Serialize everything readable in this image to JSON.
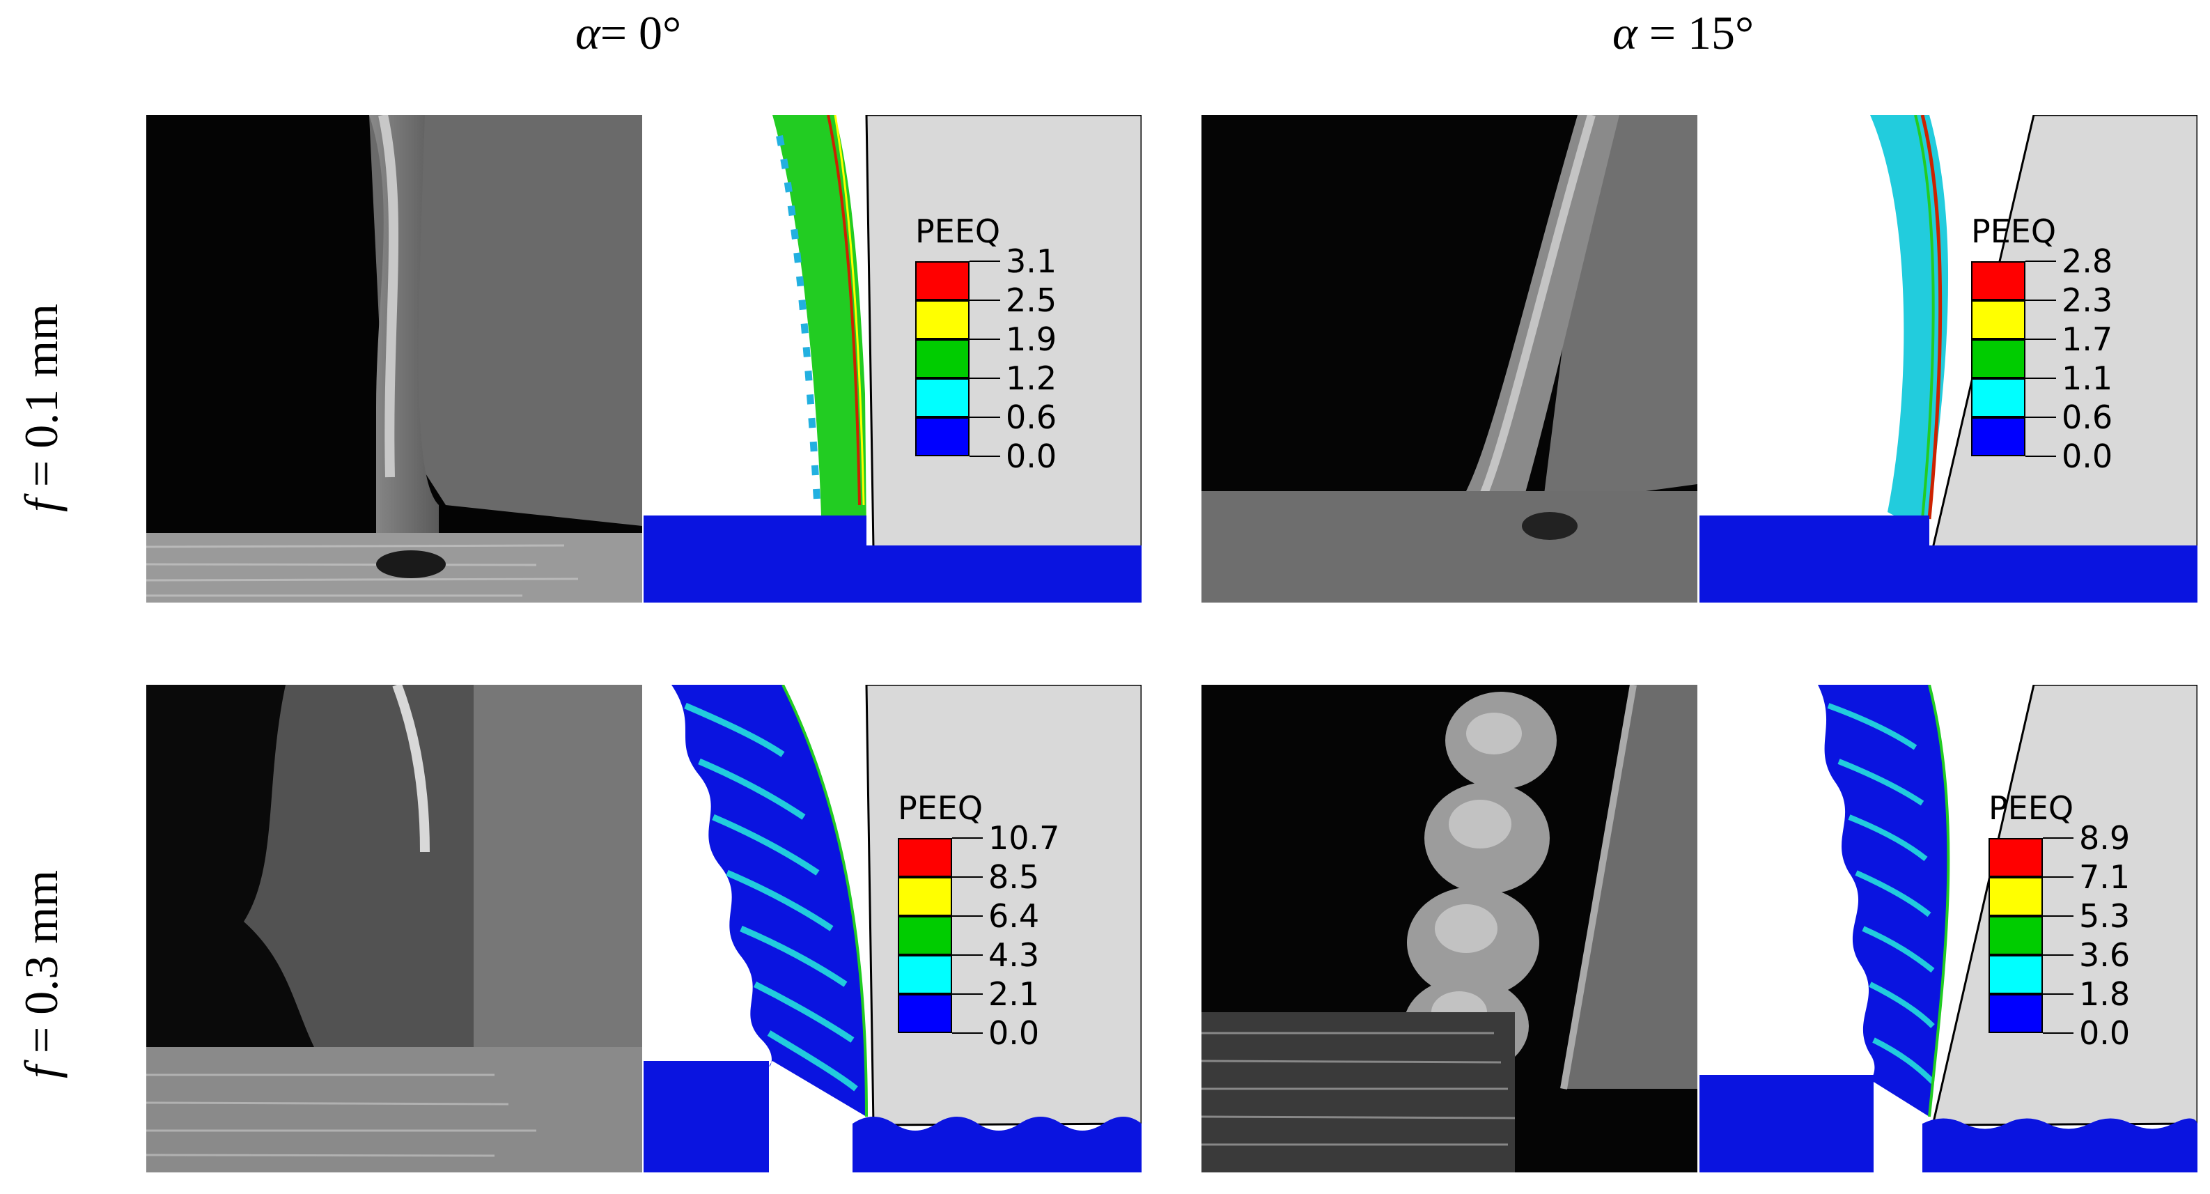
{
  "columns": [
    {
      "symbol": "α",
      "text": "= 0°"
    },
    {
      "symbol": "α",
      "text": " = 15°"
    }
  ],
  "rows": [
    {
      "symbol": "f",
      "text": " = 0.1 mm"
    },
    {
      "symbol": "f",
      "text": " = 0.3 mm"
    }
  ],
  "panels": [
    {
      "row": 0,
      "col": 0,
      "legend_title": "PEEQ",
      "legend_values": [
        "3.1",
        "2.5",
        "1.9",
        "1.2",
        "0.6",
        "0.0"
      ]
    },
    {
      "row": 0,
      "col": 1,
      "legend_title": "PEEQ",
      "legend_values": [
        "2.8",
        "2.3",
        "1.7",
        "1.1",
        "0.6",
        "0.0"
      ]
    },
    {
      "row": 1,
      "col": 0,
      "legend_title": "PEEQ",
      "legend_values": [
        "10.7",
        "8.5",
        "6.4",
        "4.3",
        "2.1",
        "0.0"
      ]
    },
    {
      "row": 1,
      "col": 1,
      "legend_title": "PEEQ",
      "legend_values": [
        "8.9",
        "7.1",
        "5.3",
        "3.6",
        "1.8",
        "0.0"
      ]
    }
  ],
  "legend_colors": [
    "#ff0000",
    "#ffff00",
    "#00cc00",
    "#00ffff",
    "#0000ff"
  ],
  "colors": {
    "tool": "#d9d9d9",
    "workpiece": "#0a14e0",
    "chip_low": "#22b0e0",
    "chip_mid": "#22cc22"
  }
}
